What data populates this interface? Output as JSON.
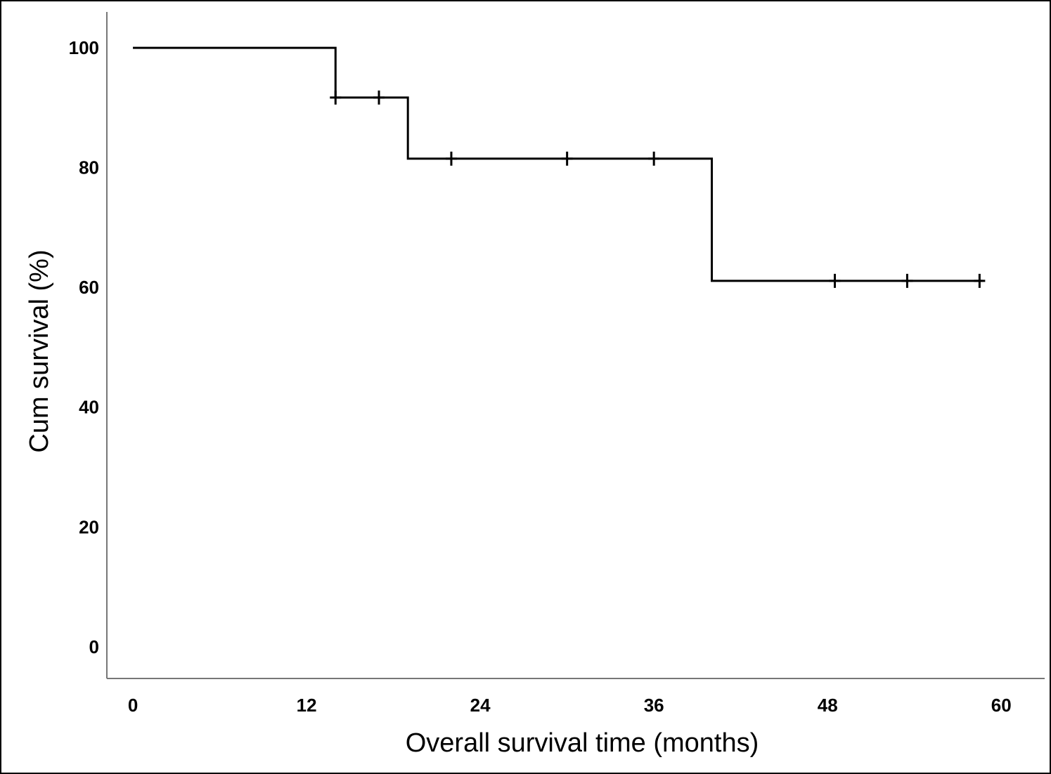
{
  "chart_data": {
    "type": "line",
    "title": "",
    "xlabel": "Overall survival time (months)",
    "ylabel": "Cum survival (%)",
    "xlim": [
      -1.8,
      63
    ],
    "ylim": [
      -5.3,
      106
    ],
    "x_ticks": [
      "0",
      "12",
      "24",
      "36",
      "48",
      "60"
    ],
    "y_ticks": [
      "0",
      "20",
      "40",
      "60",
      "80",
      "100"
    ],
    "grid": false,
    "legend": "none",
    "line_color": "#000000",
    "series": [
      {
        "step": [
          {
            "x": 0,
            "y": 100
          },
          {
            "x": 14,
            "y": 91.7
          },
          {
            "x": 19,
            "y": 81.5
          },
          {
            "x": 40,
            "y": 61.1
          },
          {
            "x": 58.7,
            "y": 61.1
          }
        ],
        "censored": [
          {
            "x": 14,
            "y": 91.7
          },
          {
            "x": 17,
            "y": 91.7
          },
          {
            "x": 22,
            "y": 81.5
          },
          {
            "x": 30,
            "y": 81.5
          },
          {
            "x": 36,
            "y": 81.5
          },
          {
            "x": 48.5,
            "y": 61.1
          },
          {
            "x": 53.5,
            "y": 61.1
          },
          {
            "x": 58.5,
            "y": 61.1
          }
        ]
      }
    ]
  }
}
